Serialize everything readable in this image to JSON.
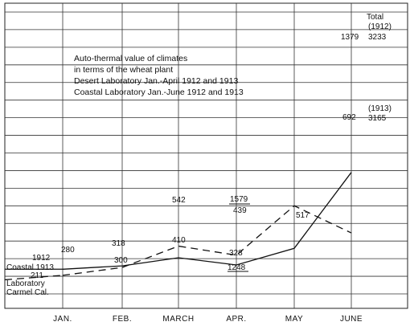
{
  "chart_data": {
    "type": "line",
    "categories": [
      "JAN.",
      "FEB.",
      "MARCH",
      "APR.",
      "MAY",
      "JUNE"
    ],
    "ylim": [
      0,
      3300
    ],
    "grid": true,
    "series": [
      {
        "name": "Desert Laboratory Jan.-April 1912 and 1913",
        "style": "solid",
        "x": [
          "JAN.",
          "FEB.",
          "MARCH",
          "APR.",
          "MAY",
          "JUNE"
        ],
        "values": [
          280,
          318,
          410,
          328,
          517,
          1379
        ]
      },
      {
        "name": "Coastal Laboratory Jan.-June 1912 and 1913",
        "style": "dashed",
        "x": [
          "JAN.",
          "FEB.",
          "MARCH",
          "APR.",
          "MAY",
          "JUNE"
        ],
        "values": [
          211,
          300,
          542,
          439,
          1000,
          692
        ]
      }
    ],
    "legend": {
      "title_line1": "Auto-thermal value of climates",
      "title_line2": "in terms of the wheat plant",
      "entry1": "Desert Laboratory Jan.-April 1912 and 1913",
      "entry2": "Coastal Laboratory Jan.-June 1912 and 1913"
    },
    "annotations": {
      "jan_top": "280",
      "jan_year": "1912",
      "coastal_1913": "Coastal 1913",
      "jan_bottom": "211",
      "laboratory": "Laboratory",
      "carmel": "Carmel Cal.",
      "feb_top": "318",
      "feb_bottom": "300",
      "mar_top": "542",
      "mar_mid": "410",
      "apr_top": "1579",
      "apr_mid": "439",
      "apr_low": "328",
      "apr_bottom": "1248",
      "may": "517",
      "june_top": "1379",
      "june_mid": "692",
      "total": "Total",
      "total_year": "(1912)",
      "total_value": "3233",
      "y1913": "(1913)",
      "total_1913": "3165"
    }
  }
}
